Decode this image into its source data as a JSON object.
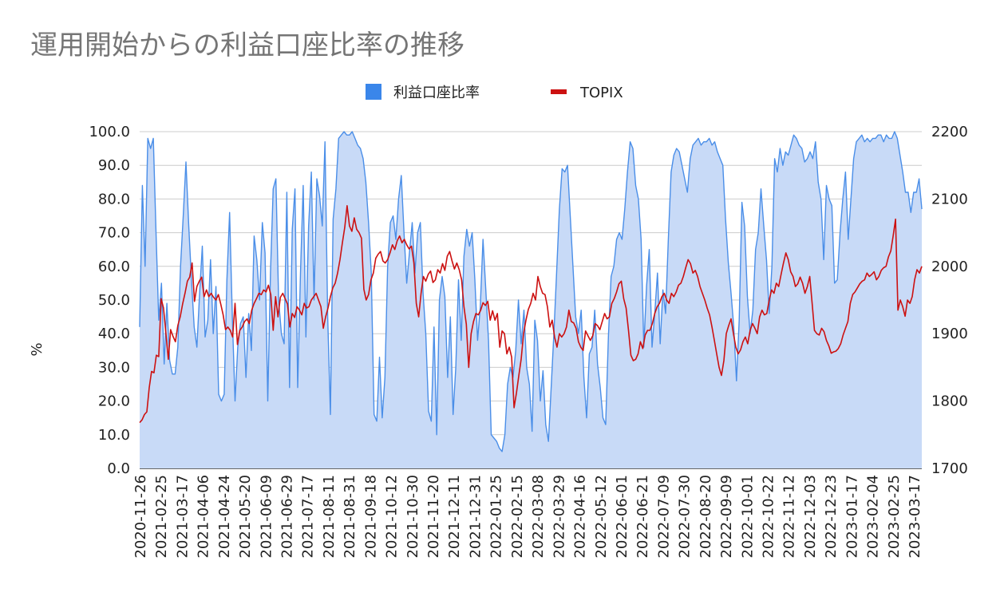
{
  "chart_data": {
    "type": "line",
    "title": "運用開始からの利益口座比率の推移",
    "ylabel": "%",
    "ylim": [
      0,
      100
    ],
    "y2lim": [
      1700,
      2200
    ],
    "y_ticks": [
      "100.0",
      "90.0",
      "80.0",
      "70.0",
      "60.0",
      "50.0",
      "40.0",
      "30.0",
      "20.0",
      "10.0",
      "0.0"
    ],
    "y2_ticks": [
      "2200",
      "2100",
      "2000",
      "1900",
      "1800",
      "1700"
    ],
    "x_ticks": [
      "2020-11-26",
      "2021-02-25",
      "2021-03-17",
      "2021-04-06",
      "2021-04-24",
      "2021-05-20",
      "2021-06-09",
      "2021-06-29",
      "2021-07-17",
      "2021-08-11",
      "2021-08-31",
      "2021-09-18",
      "2021-10-12",
      "2021-10-30",
      "2021-11-20",
      "2021-12-11",
      "2021-12-31",
      "2022-01-25",
      "2022-02-15",
      "2022-03-08",
      "2022-03-29",
      "2022-04-16",
      "2022-05-12",
      "2022-06-01",
      "2022-06-21",
      "2022-07-09",
      "2022-07-30",
      "2022-08-20",
      "2022-09-09",
      "2022-10-01",
      "2022-10-22",
      "2022-11-12",
      "2022-12-03",
      "2022-12-23",
      "2023-01-17",
      "2023-02-04",
      "2023-02-25",
      "2023-03-17"
    ],
    "legend_position": "top",
    "grid": true,
    "series": [
      {
        "name": "利益口座比率",
        "axis": "left",
        "color": "#4a8ee8",
        "fill": "#c8daf7",
        "values": [
          42,
          84,
          60,
          98,
          95,
          98,
          70,
          44,
          55,
          31,
          49,
          32,
          28,
          28,
          36,
          60,
          75,
          91,
          72,
          56,
          42,
          36,
          52,
          66,
          39,
          44,
          62,
          40,
          54,
          22,
          20,
          22,
          56,
          76,
          45,
          20,
          36,
          43,
          45,
          27,
          46,
          35,
          69,
          62,
          50,
          73,
          64,
          20,
          58,
          83,
          86,
          50,
          40,
          37,
          82,
          24,
          71,
          83,
          24,
          58,
          84,
          39,
          72,
          88,
          50,
          86,
          81,
          72,
          97,
          45,
          16,
          74,
          83,
          98,
          99,
          100,
          99,
          99,
          100,
          98,
          96,
          95,
          92,
          85,
          73,
          58,
          16,
          14,
          33,
          15,
          27,
          60,
          73,
          75,
          68,
          80,
          87,
          70,
          55,
          64,
          73,
          58,
          70,
          73,
          52,
          40,
          17,
          14,
          42,
          10,
          50,
          57,
          51,
          27,
          45,
          16,
          30,
          56,
          38,
          63,
          71,
          66,
          70,
          56,
          38,
          48,
          68,
          53,
          38,
          10,
          9,
          8,
          6,
          5,
          10,
          25,
          30,
          27,
          35,
          50,
          37,
          47,
          30,
          25,
          11,
          44,
          38,
          20,
          29,
          13,
          8,
          24,
          40,
          58,
          77,
          89,
          88,
          90,
          75,
          60,
          45,
          40,
          47,
          27,
          15,
          34,
          36,
          47,
          31,
          24,
          15,
          13,
          39,
          57,
          60,
          68,
          70,
          68,
          77,
          88,
          97,
          95,
          84,
          80,
          68,
          36,
          54,
          65,
          36,
          46,
          58,
          37,
          53,
          46,
          68,
          88,
          93,
          95,
          94,
          90,
          86,
          82,
          92,
          96,
          97,
          98,
          96,
          97,
          97,
          98,
          96,
          97,
          94,
          92,
          90,
          74,
          61,
          52,
          42,
          26,
          44,
          79,
          72,
          51,
          40,
          47,
          65,
          70,
          83,
          72,
          62,
          46,
          60,
          92,
          88,
          95,
          90,
          94,
          93,
          96,
          99,
          98,
          96,
          95,
          91,
          92,
          94,
          92,
          97,
          85,
          80,
          62,
          84,
          80,
          78,
          55,
          56,
          70,
          80,
          88,
          68,
          80,
          92,
          97,
          98,
          99,
          97,
          98,
          97,
          98,
          98,
          99,
          99,
          97,
          99,
          98,
          98,
          100,
          98,
          93,
          88,
          82,
          82,
          76,
          82,
          82,
          86,
          77
        ]
      },
      {
        "name": "TOPIX",
        "axis": "right",
        "color": "#cc1111",
        "values": [
          1768,
          1772,
          1780,
          1784,
          1820,
          1844,
          1842,
          1868,
          1866,
          1952,
          1938,
          1900,
          1862,
          1906,
          1896,
          1888,
          1912,
          1925,
          1944,
          1960,
          1978,
          1984,
          2005,
          1948,
          1970,
          1978,
          1984,
          1955,
          1965,
          1955,
          1960,
          1954,
          1950,
          1958,
          1944,
          1928,
          1906,
          1910,
          1905,
          1895,
          1945,
          1884,
          1905,
          1910,
          1918,
          1922,
          1915,
          1935,
          1945,
          1952,
          1960,
          1958,
          1965,
          1962,
          1972,
          1958,
          1905,
          1955,
          1925,
          1954,
          1960,
          1952,
          1944,
          1910,
          1930,
          1924,
          1940,
          1935,
          1928,
          1945,
          1938,
          1940,
          1950,
          1955,
          1960,
          1950,
          1940,
          1908,
          1925,
          1938,
          1955,
          1968,
          1975,
          1990,
          2010,
          2035,
          2058,
          2090,
          2060,
          2052,
          2072,
          2055,
          2050,
          2042,
          1966,
          1950,
          1958,
          1980,
          1990,
          2012,
          2018,
          2022,
          2008,
          2005,
          2010,
          2020,
          2032,
          2025,
          2038,
          2045,
          2035,
          2040,
          2032,
          2026,
          2030,
          2005,
          1945,
          1925,
          1960,
          1985,
          1978,
          1988,
          1993,
          1976,
          1980,
          1995,
          1990,
          2004,
          1994,
          2015,
          2022,
          2008,
          1996,
          2005,
          1995,
          1980,
          1940,
          1914,
          1850,
          1900,
          1918,
          1930,
          1928,
          1935,
          1946,
          1942,
          1948,
          1920,
          1934,
          1920,
          1930,
          1880,
          1904,
          1900,
          1870,
          1880,
          1865,
          1790,
          1812,
          1838,
          1862,
          1900,
          1920,
          1936,
          1945,
          1960,
          1950,
          1985,
          1970,
          1960,
          1958,
          1940,
          1910,
          1920,
          1895,
          1880,
          1900,
          1895,
          1900,
          1910,
          1935,
          1918,
          1916,
          1908,
          1888,
          1880,
          1875,
          1904,
          1897,
          1890,
          1897,
          1915,
          1912,
          1906,
          1918,
          1930,
          1922,
          1925,
          1945,
          1952,
          1962,
          1974,
          1978,
          1952,
          1938,
          1905,
          1868,
          1860,
          1862,
          1870,
          1888,
          1878,
          1898,
          1905,
          1905,
          1915,
          1930,
          1940,
          1945,
          1955,
          1960,
          1950,
          1945,
          1960,
          1955,
          1962,
          1972,
          1975,
          1985,
          1998,
          2010,
          2004,
          1990,
          1994,
          1985,
          1970,
          1960,
          1950,
          1938,
          1928,
          1910,
          1890,
          1870,
          1850,
          1838,
          1860,
          1900,
          1912,
          1922,
          1900,
          1880,
          1870,
          1876,
          1888,
          1895,
          1885,
          1905,
          1915,
          1908,
          1900,
          1925,
          1935,
          1928,
          1930,
          1950,
          1965,
          1960,
          1975,
          1970,
          1988,
          2005,
          2020,
          2010,
          1992,
          1985,
          1970,
          1974,
          1984,
          1975,
          1960,
          1970,
          1985,
          1945,
          1905,
          1900,
          1898,
          1908,
          1903,
          1890,
          1882,
          1871,
          1873,
          1874,
          1878,
          1885,
          1898,
          1908,
          1918,
          1945,
          1958,
          1962,
          1968,
          1974,
          1978,
          1980,
          1990,
          1985,
          1988,
          1992,
          1980,
          1985,
          1994,
          1998,
          2000,
          2014,
          2023,
          2045,
          2070,
          1935,
          1950,
          1940,
          1926,
          1950,
          1945,
          1955,
          1980,
          1995,
          1990,
          2000
        ]
      }
    ]
  }
}
